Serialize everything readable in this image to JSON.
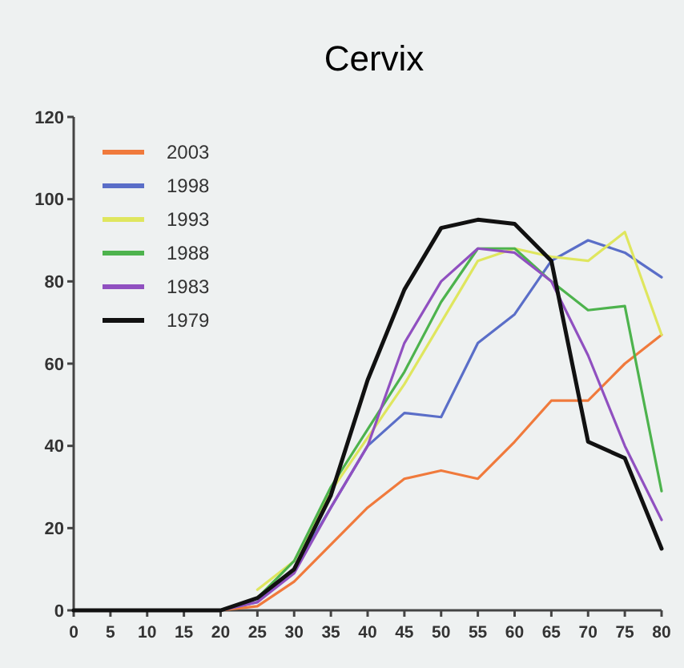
{
  "chart_data": {
    "type": "line",
    "title": "Cervix",
    "x": [
      0,
      5,
      10,
      15,
      20,
      25,
      30,
      35,
      40,
      45,
      50,
      55,
      60,
      65,
      70,
      75,
      80
    ],
    "series": [
      {
        "name": "2003",
        "color": "#f07a3c",
        "values": [
          null,
          null,
          null,
          null,
          0,
          1,
          7,
          16,
          25,
          32,
          34,
          32,
          41,
          51,
          51,
          60,
          67
        ]
      },
      {
        "name": "1998",
        "color": "#5a6ec8",
        "values": [
          null,
          null,
          null,
          null,
          0,
          2,
          10,
          25,
          40,
          48,
          47,
          65,
          72,
          85,
          90,
          87,
          81
        ]
      },
      {
        "name": "1993",
        "color": "#dfe65e",
        "values": [
          null,
          null,
          null,
          null,
          null,
          5,
          12,
          29,
          42,
          55,
          70,
          85,
          88,
          86,
          85,
          92,
          67
        ]
      },
      {
        "name": "1988",
        "color": "#4db34d",
        "values": [
          null,
          null,
          null,
          null,
          0,
          3,
          12,
          30,
          44,
          58,
          75,
          88,
          88,
          80,
          73,
          74,
          29
        ]
      },
      {
        "name": "1983",
        "color": "#9050c0",
        "values": [
          null,
          null,
          null,
          null,
          0,
          2,
          9,
          25,
          40,
          65,
          80,
          88,
          87,
          80,
          62,
          40,
          22
        ]
      },
      {
        "name": "1979",
        "color": "#111111",
        "values": [
          0,
          0,
          0,
          0,
          0,
          3,
          10,
          28,
          56,
          78,
          93,
          95,
          94,
          85,
          41,
          37,
          15
        ]
      }
    ],
    "xlim": [
      0,
      80
    ],
    "xticks": [
      0,
      5,
      10,
      15,
      20,
      25,
      30,
      35,
      40,
      45,
      50,
      55,
      60,
      65,
      70,
      75,
      80
    ],
    "ylim": [
      0,
      120
    ],
    "yticks": [
      0,
      20,
      40,
      60,
      80,
      100,
      120
    ],
    "grid": false,
    "legend": "top left",
    "marker": "none",
    "line_style": "solid"
  }
}
